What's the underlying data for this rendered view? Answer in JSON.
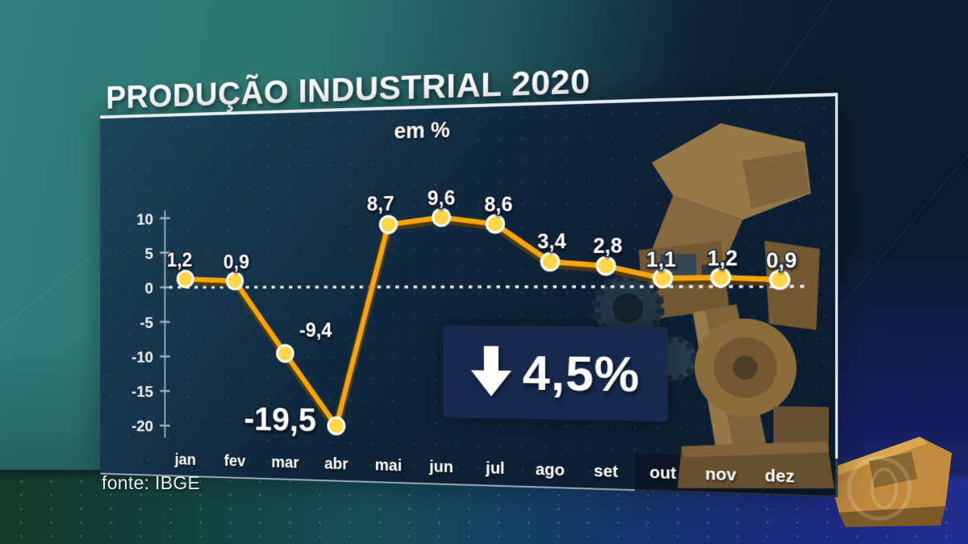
{
  "header": {
    "title": "PRODUÇÃO INDUSTRIAL 2020",
    "unit_label": "em %",
    "source": "fonte: IBGE"
  },
  "chart_data": {
    "type": "line",
    "title": "PRODUÇÃO INDUSTRIAL 2020",
    "subtitle": "em %",
    "categories": [
      "jan",
      "fev",
      "mar",
      "abr",
      "mai",
      "jun",
      "jul",
      "ago",
      "set",
      "out",
      "nov",
      "dez"
    ],
    "values": [
      1.2,
      0.9,
      -9.4,
      -19.5,
      8.7,
      9.6,
      8.6,
      3.4,
      2.8,
      1.1,
      1.2,
      0.9
    ],
    "value_labels": [
      "1,2",
      "0,9",
      "-9,4",
      "-19,5",
      "8,7",
      "9,6",
      "8,6",
      "3,4",
      "2,8",
      "1,1",
      "1,2",
      "0,9"
    ],
    "y_ticks": [
      10,
      5,
      0,
      -5,
      -10,
      -15,
      -20
    ],
    "ylim": [
      -21.5,
      12.5
    ],
    "zero_line_style": "dashed",
    "grid": false,
    "legend": "none",
    "annotation": "queda de 4,5% no ano"
  },
  "annotation": {
    "direction": "down",
    "value": "4,5%"
  },
  "colors": {
    "line": "#f6a60a",
    "line_shadow": "#5f3e06",
    "marker_fill": "#ffd54a",
    "marker_ring": "#ffffff",
    "axis": "#a6bdd0",
    "label_text": "#ffffff",
    "board_border": "#e6edf2",
    "backdrop_teal": "#31807a",
    "backdrop_navy": "#0c1a2c",
    "floor_blue": "#1b2a84",
    "annotation_bg": "#182a4e"
  },
  "decor": {
    "robot": "industrial-robot-arm",
    "watermark": "tv-network-globe-logo"
  }
}
